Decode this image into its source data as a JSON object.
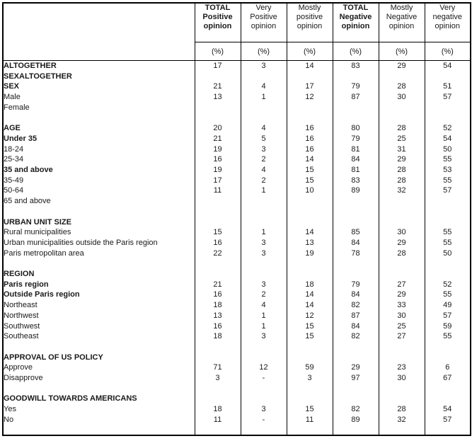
{
  "colors": {
    "border": "#000000",
    "background": "#ffffff",
    "text": "#1a1a1a"
  },
  "table": {
    "row_label_header": "",
    "columns": [
      {
        "lines": [
          "TOTAL",
          "Positive",
          "opinion"
        ],
        "bold": true,
        "unit": "(%)"
      },
      {
        "lines": [
          "Very",
          "Positive",
          "opinion"
        ],
        "bold": false,
        "unit": "(%)"
      },
      {
        "lines": [
          "Mostly",
          "positive",
          "opinion"
        ],
        "bold": false,
        "unit": "(%)"
      },
      {
        "lines": [
          "TOTAL",
          "Negative",
          "opinion"
        ],
        "bold": true,
        "unit": "(%)"
      },
      {
        "lines": [
          "Mostly",
          "Negative",
          "opinion"
        ],
        "bold": false,
        "unit": "(%)"
      },
      {
        "lines": [
          "Very",
          "negative",
          "opinion"
        ],
        "bold": false,
        "unit": "(%)"
      }
    ],
    "rows": [
      {
        "label": "ALTOGETHER",
        "bold": true,
        "values": [
          "17",
          "3",
          "14",
          "83",
          "29",
          "54"
        ]
      },
      {
        "label": "SEXALTOGETHER",
        "bold": true,
        "values": [
          "",
          "",
          "",
          "",
          "",
          ""
        ]
      },
      {
        "label": "SEX",
        "bold": true,
        "values": [
          "21",
          "4",
          "17",
          "79",
          "28",
          "51"
        ]
      },
      {
        "label": "Male",
        "bold": false,
        "values": [
          "13",
          "1",
          "12",
          "87",
          "30",
          "57"
        ]
      },
      {
        "label": "Female",
        "bold": false,
        "values": [
          "",
          "",
          "",
          "",
          "",
          ""
        ]
      },
      {
        "type": "spacer"
      },
      {
        "label": "AGE",
        "bold": true,
        "values": [
          "20",
          "4",
          "16",
          "80",
          "28",
          "52"
        ]
      },
      {
        "label": "Under 35",
        "bold": true,
        "values": [
          "21",
          "5",
          "16",
          "79",
          "25",
          "54"
        ]
      },
      {
        "label": "18-24",
        "bold": false,
        "values": [
          "19",
          "3",
          "16",
          "81",
          "31",
          "50"
        ]
      },
      {
        "label": "25-34",
        "bold": false,
        "values": [
          "16",
          "2",
          "14",
          "84",
          "29",
          "55"
        ]
      },
      {
        "label": "35 and above",
        "bold": true,
        "values": [
          "19",
          "4",
          "15",
          "81",
          "28",
          "53"
        ]
      },
      {
        "label": "35-49",
        "bold": false,
        "values": [
          "17",
          "2",
          "15",
          "83",
          "28",
          "55"
        ]
      },
      {
        "label": "50-64",
        "bold": false,
        "values": [
          "11",
          "1",
          "10",
          "89",
          "32",
          "57"
        ]
      },
      {
        "label": "65 and above",
        "bold": false,
        "values": [
          "",
          "",
          "",
          "",
          "",
          ""
        ]
      },
      {
        "type": "spacer"
      },
      {
        "label": "URBAN UNIT SIZE",
        "bold": true,
        "values": [
          "",
          "",
          "",
          "",
          "",
          ""
        ]
      },
      {
        "label": "Rural municipalities",
        "bold": false,
        "values": [
          "15",
          "1",
          "14",
          "85",
          "30",
          "55"
        ]
      },
      {
        "label": "Urban municipalities outside the Paris region",
        "bold": false,
        "values": [
          "16",
          "3",
          "13",
          "84",
          "29",
          "55"
        ]
      },
      {
        "label": "Paris metropolitan area",
        "bold": false,
        "values": [
          "22",
          "3",
          "19",
          "78",
          "28",
          "50"
        ]
      },
      {
        "type": "spacer"
      },
      {
        "label": "REGION",
        "bold": true,
        "values": [
          "",
          "",
          "",
          "",
          "",
          ""
        ]
      },
      {
        "label": "Paris region",
        "bold": true,
        "values": [
          "21",
          "3",
          "18",
          "79",
          "27",
          "52"
        ]
      },
      {
        "label": "Outside Paris region",
        "bold": true,
        "values": [
          "16",
          "2",
          "14",
          "84",
          "29",
          "55"
        ]
      },
      {
        "label": "Northeast",
        "bold": false,
        "values": [
          "18",
          "4",
          "14",
          "82",
          "33",
          "49"
        ]
      },
      {
        "label": "Northwest",
        "bold": false,
        "values": [
          "13",
          "1",
          "12",
          "87",
          "30",
          "57"
        ]
      },
      {
        "label": "Southwest",
        "bold": false,
        "values": [
          "16",
          "1",
          "15",
          "84",
          "25",
          "59"
        ]
      },
      {
        "label": "Southeast",
        "bold": false,
        "values": [
          "18",
          "3",
          "15",
          "82",
          "27",
          "55"
        ]
      },
      {
        "type": "spacer"
      },
      {
        "label": "APPROVAL OF US POLICY",
        "bold": true,
        "values": [
          "",
          "",
          "",
          "",
          "",
          ""
        ]
      },
      {
        "label": "Approve",
        "bold": false,
        "values": [
          "71",
          "12",
          "59",
          "29",
          "23",
          "6"
        ]
      },
      {
        "label": "Disapprove",
        "bold": false,
        "values": [
          "3",
          "-",
          "3",
          "97",
          "30",
          "67"
        ]
      },
      {
        "type": "spacer"
      },
      {
        "label": "GOODWILL TOWARDS AMERICANS",
        "bold": true,
        "values": [
          "",
          "",
          "",
          "",
          "",
          ""
        ]
      },
      {
        "label": "Yes",
        "bold": false,
        "values": [
          "18",
          "3",
          "15",
          "82",
          "28",
          "54"
        ]
      },
      {
        "label": "No",
        "bold": false,
        "values": [
          "11",
          "-",
          "11",
          "89",
          "32",
          "57"
        ]
      },
      {
        "type": "spacer"
      }
    ]
  }
}
